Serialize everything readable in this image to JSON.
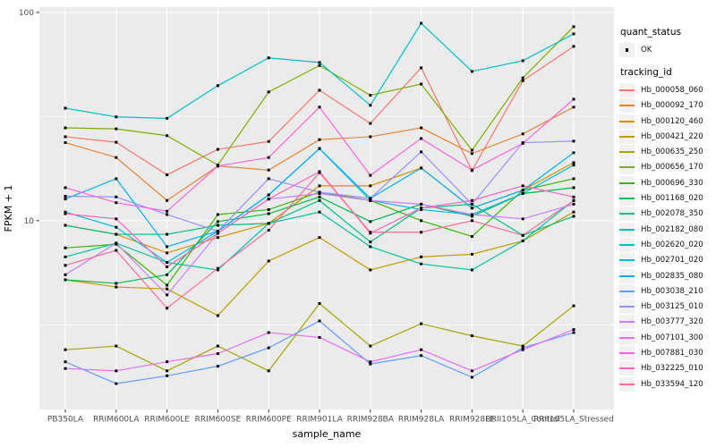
{
  "colors": {
    "panel_bg": "#EBEBEB",
    "grid": "#FFFFFF",
    "tick_mark": "#333333",
    "tick_text": "#4D4D4D",
    "axis_title_text": "#000000",
    "point": "#000000",
    "legend_key_bg": "#F1F1F1"
  },
  "legend": {
    "quant_status_title": "quant_status",
    "quant_status_items": [
      {
        "label": "OK",
        "marker": "black-square-point"
      }
    ],
    "tracking_id_title": "tracking_id"
  },
  "axes": {
    "y_ticks": [
      {
        "label": "100",
        "value": 100
      },
      {
        "label": "10",
        "value": 10
      }
    ],
    "y_minor_gridlines": [
      31.62,
      3.162
    ]
  },
  "chart_data": {
    "type": "line",
    "title": "",
    "xlabel": "sample_name",
    "ylabel": "FPKM + 1",
    "y_scale": "log10",
    "ylim": [
      1.24,
      106
    ],
    "grid": true,
    "legend_position": "right",
    "point_marker": "small black square (quant_status OK)",
    "categories": [
      "PB350LA",
      "RRIM600LA",
      "RRIM600LE",
      "RRIM600SE",
      "RRIM600PE",
      "RRIM901LA",
      "RRIM928BA",
      "RRIM928LA",
      "RRIM928LE",
      "RRII105LA_Control",
      "RRII105LA_Stressed"
    ],
    "series": [
      {
        "name": "Hb_000058_060",
        "color": "#F8766D",
        "values": [
          25.3,
          23.8,
          16.6,
          22.0,
          24.0,
          42.3,
          29.3,
          54.2,
          17.4,
          47.0,
          68.7
        ]
      },
      {
        "name": "Hb_000092_170",
        "color": "#EA8331",
        "values": [
          23.7,
          20.1,
          12.5,
          18.3,
          17.5,
          24.5,
          25.3,
          27.9,
          21.0,
          26.1,
          35.1
        ]
      },
      {
        "name": "Hb_000120_460",
        "color": "#D89000",
        "values": [
          9.5,
          8.6,
          7.0,
          8.3,
          9.7,
          14.7,
          14.7,
          17.9,
          11.5,
          14.0,
          19.0
        ]
      },
      {
        "name": "Hb_000421_220",
        "color": "#C09B00",
        "values": [
          5.2,
          4.8,
          4.7,
          3.5,
          6.4,
          8.3,
          5.8,
          6.7,
          6.9,
          8.0,
          11.0
        ]
      },
      {
        "name": "Hb_000635_250",
        "color": "#A3A500",
        "values": [
          2.4,
          2.5,
          1.9,
          2.5,
          1.9,
          4.0,
          2.5,
          3.2,
          2.8,
          2.5,
          3.9
        ]
      },
      {
        "name": "Hb_000656_170",
        "color": "#7CAE00",
        "values": [
          27.9,
          27.6,
          25.6,
          18.5,
          41.5,
          55.6,
          40.0,
          45.3,
          21.8,
          48.5,
          85.4
        ]
      },
      {
        "name": "Hb_000696_330",
        "color": "#39B600",
        "values": [
          7.4,
          7.7,
          4.9,
          10.7,
          11.3,
          13.7,
          12.5,
          10.0,
          8.4,
          14.0,
          15.9
        ]
      },
      {
        "name": "Hb_001168_020",
        "color": "#00BB4E",
        "values": [
          5.2,
          5.0,
          5.5,
          9.9,
          10.8,
          13.0,
          9.9,
          12.0,
          10.5,
          13.5,
          14.4
        ]
      },
      {
        "name": "Hb_002078_350",
        "color": "#00BF7D",
        "values": [
          9.5,
          8.6,
          8.6,
          9.5,
          9.7,
          12.5,
          7.9,
          11.5,
          12.0,
          8.5,
          10.5
        ]
      },
      {
        "name": "Hb_002182_080",
        "color": "#00C1A3",
        "values": [
          6.7,
          7.8,
          6.3,
          5.8,
          9.7,
          11.0,
          7.5,
          6.2,
          5.8,
          8.0,
          12.5
        ]
      },
      {
        "name": "Hb_002620_020",
        "color": "#00BFC4",
        "values": [
          34.7,
          31.5,
          31.0,
          44.5,
          60.5,
          57.5,
          35.8,
          88.7,
          52.1,
          58.6,
          78.9
        ]
      },
      {
        "name": "Hb_002701_020",
        "color": "#00BAE0",
        "values": [
          11.0,
          9.3,
          6.3,
          8.9,
          13.3,
          22.2,
          12.5,
          11.3,
          10.7,
          13.5,
          18.5
        ]
      },
      {
        "name": "Hb_002835_080",
        "color": "#00B0F6",
        "values": [
          12.7,
          15.9,
          7.5,
          8.9,
          13.3,
          22.2,
          12.8,
          17.9,
          11.5,
          14.0,
          21.2
        ]
      },
      {
        "name": "Hb_003038_210",
        "color": "#619CFF",
        "values": [
          2.1,
          1.65,
          1.8,
          2.0,
          2.45,
          3.3,
          2.05,
          2.25,
          1.77,
          2.45,
          2.9
        ]
      },
      {
        "name": "Hb_003125_010",
        "color": "#9590FF",
        "values": [
          13.1,
          13.0,
          10.7,
          8.9,
          15.9,
          13.7,
          12.8,
          21.4,
          12.0,
          23.7,
          24.1
        ]
      },
      {
        "name": "Hb_003777_320",
        "color": "#C77CFF",
        "values": [
          5.5,
          7.8,
          4.4,
          8.7,
          12.7,
          13.5,
          12.5,
          12.0,
          10.7,
          10.2,
          12.0
        ]
      },
      {
        "name": "Hb_007101_300",
        "color": "#E76BF3",
        "values": [
          1.95,
          1.9,
          2.1,
          2.3,
          2.9,
          2.75,
          2.1,
          2.4,
          1.9,
          2.4,
          3.0
        ]
      },
      {
        "name": "Hb_007881_030",
        "color": "#FA62DB",
        "values": [
          14.4,
          12.2,
          11.1,
          18.3,
          20.1,
          35.1,
          16.5,
          24.8,
          17.5,
          23.5,
          38.3
        ]
      },
      {
        "name": "Hb_032225_010",
        "color": "#FF62BC",
        "values": [
          10.8,
          10.2,
          6.0,
          8.7,
          12.7,
          17.2,
          8.7,
          11.5,
          12.5,
          14.7,
          13.0
        ]
      },
      {
        "name": "Hb_033594_120",
        "color": "#FF6A98",
        "values": [
          6.1,
          7.2,
          3.8,
          5.9,
          9.0,
          17.0,
          8.8,
          8.8,
          10.0,
          8.5,
          12.5
        ]
      }
    ]
  }
}
